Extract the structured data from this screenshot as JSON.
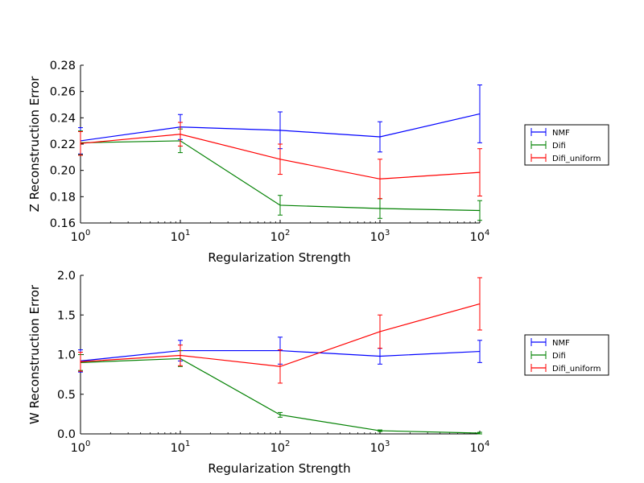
{
  "chart_data": [
    {
      "type": "line",
      "xscale": "log",
      "x": [
        1,
        10,
        100,
        1000,
        10000
      ],
      "xlim": [
        1,
        10000
      ],
      "ylim": [
        0.16,
        0.28
      ],
      "xlabel": "Regularization Strength",
      "ylabel": "Z Reconstruction Error",
      "x_ticks": [
        {
          "base": "10",
          "exp": "0",
          "value": 1
        },
        {
          "base": "10",
          "exp": "1",
          "value": 10
        },
        {
          "base": "10",
          "exp": "2",
          "value": 100
        },
        {
          "base": "10",
          "exp": "3",
          "value": 1000
        },
        {
          "base": "10",
          "exp": "4",
          "value": 10000
        }
      ],
      "y_ticks": [
        {
          "label": "0.16",
          "value": 0.16
        },
        {
          "label": "0.18",
          "value": 0.18
        },
        {
          "label": "0.20",
          "value": 0.2
        },
        {
          "label": "0.22",
          "value": 0.22
        },
        {
          "label": "0.24",
          "value": 0.24
        },
        {
          "label": "0.26",
          "value": 0.26
        },
        {
          "label": "0.28",
          "value": 0.28
        }
      ],
      "legend_placement": "right, outside",
      "grid": false,
      "series": [
        {
          "name": "NMF",
          "color": "#0000ff",
          "values": [
            0.2225,
            0.233,
            0.2305,
            0.2255,
            0.243
          ],
          "errors": [
            0.01,
            0.0095,
            0.014,
            0.0115,
            0.022
          ]
        },
        {
          "name": "Difi",
          "color": "#008000",
          "values": [
            0.221,
            0.2225,
            0.1735,
            0.171,
            0.1695
          ],
          "errors": [
            0.009,
            0.009,
            0.0075,
            0.0075,
            0.0075
          ]
        },
        {
          "name": "Difi_uniform",
          "color": "#ff0000",
          "values": [
            0.2205,
            0.2275,
            0.2085,
            0.1935,
            0.1985
          ],
          "errors": [
            0.009,
            0.009,
            0.0115,
            0.015,
            0.018
          ]
        }
      ]
    },
    {
      "type": "line",
      "xscale": "log",
      "x": [
        1,
        10,
        100,
        1000,
        10000
      ],
      "xlim": [
        1,
        10000
      ],
      "ylim": [
        0.0,
        2.0
      ],
      "xlabel": "Regularization Strength",
      "ylabel": "W Reconstruction Error",
      "x_ticks": [
        {
          "base": "10",
          "exp": "0",
          "value": 1
        },
        {
          "base": "10",
          "exp": "1",
          "value": 10
        },
        {
          "base": "10",
          "exp": "2",
          "value": 100
        },
        {
          "base": "10",
          "exp": "3",
          "value": 1000
        },
        {
          "base": "10",
          "exp": "4",
          "value": 10000
        }
      ],
      "y_ticks": [
        {
          "label": "0.0",
          "value": 0.0
        },
        {
          "label": "0.5",
          "value": 0.5
        },
        {
          "label": "1.0",
          "value": 1.0
        },
        {
          "label": "1.5",
          "value": 1.5
        },
        {
          "label": "2.0",
          "value": 2.0
        }
      ],
      "legend_placement": "right, outside",
      "grid": false,
      "series": [
        {
          "name": "NMF",
          "color": "#0000ff",
          "values": [
            0.92,
            1.05,
            1.05,
            0.98,
            1.04
          ],
          "errors": [
            0.14,
            0.13,
            0.17,
            0.1,
            0.14
          ]
        },
        {
          "name": "Difi",
          "color": "#008000",
          "values": [
            0.9,
            0.95,
            0.24,
            0.04,
            0.01
          ],
          "errors": [
            0.1,
            0.1,
            0.03,
            0.01,
            0.01
          ]
        },
        {
          "name": "Difi_uniform",
          "color": "#ff0000",
          "values": [
            0.91,
            0.99,
            0.85,
            1.29,
            1.64
          ],
          "errors": [
            0.12,
            0.13,
            0.21,
            0.21,
            0.33
          ]
        }
      ]
    }
  ]
}
